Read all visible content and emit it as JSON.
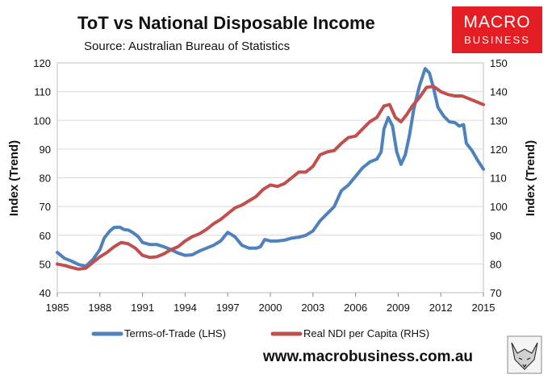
{
  "chart_data": {
    "type": "line",
    "title": "ToT vs National Disposable Income",
    "subtitle": "Source: Australian Bureau of Statistics",
    "ylabel_left": "Index (Trend)",
    "ylabel_right": "Index (Trend)",
    "xlim": [
      1985,
      2015
    ],
    "ylim_left": [
      40,
      120
    ],
    "ylim_right": [
      70,
      150
    ],
    "x_ticks": [
      "1985",
      "1988",
      "1991",
      "1994",
      "1997",
      "2000",
      "2003",
      "2006",
      "2009",
      "2012",
      "2015"
    ],
    "y_ticks_left": [
      "40",
      "50",
      "60",
      "70",
      "80",
      "90",
      "100",
      "110",
      "120"
    ],
    "y_ticks_right": [
      "70",
      "80",
      "90",
      "100",
      "110",
      "120",
      "130",
      "140",
      "150"
    ],
    "grid": true,
    "series": [
      {
        "name": "Terms-of-Trade (LHS)",
        "axis": "left",
        "color": "#4F81BD",
        "points": [
          [
            1985.0,
            54.0
          ],
          [
            1985.5,
            52.0
          ],
          [
            1986.0,
            51.0
          ],
          [
            1986.5,
            49.8
          ],
          [
            1987.0,
            49.2
          ],
          [
            1987.5,
            51.5
          ],
          [
            1988.0,
            55.0
          ],
          [
            1988.3,
            59.0
          ],
          [
            1988.7,
            61.5
          ],
          [
            1989.0,
            62.7
          ],
          [
            1989.4,
            62.8
          ],
          [
            1989.7,
            62.0
          ],
          [
            1990.0,
            61.8
          ],
          [
            1990.3,
            61.0
          ],
          [
            1990.7,
            59.5
          ],
          [
            1991.0,
            57.5
          ],
          [
            1991.5,
            56.8
          ],
          [
            1992.0,
            56.8
          ],
          [
            1992.5,
            56.0
          ],
          [
            1993.0,
            55.0
          ],
          [
            1993.5,
            53.8
          ],
          [
            1994.0,
            53.0
          ],
          [
            1994.5,
            53.2
          ],
          [
            1995.0,
            54.5
          ],
          [
            1995.5,
            55.5
          ],
          [
            1996.0,
            56.5
          ],
          [
            1996.5,
            58.0
          ],
          [
            1997.0,
            61.0
          ],
          [
            1997.5,
            59.5
          ],
          [
            1998.0,
            56.5
          ],
          [
            1998.5,
            55.5
          ],
          [
            1999.0,
            55.5
          ],
          [
            1999.3,
            56.0
          ],
          [
            1999.6,
            58.5
          ],
          [
            2000.0,
            58.0
          ],
          [
            2000.5,
            58.0
          ],
          [
            2001.0,
            58.3
          ],
          [
            2001.5,
            59.0
          ],
          [
            2002.0,
            59.3
          ],
          [
            2002.5,
            60.0
          ],
          [
            2003.0,
            61.5
          ],
          [
            2003.5,
            65.0
          ],
          [
            2004.0,
            67.5
          ],
          [
            2004.5,
            70.0
          ],
          [
            2005.0,
            75.5
          ],
          [
            2005.5,
            77.5
          ],
          [
            2006.0,
            80.5
          ],
          [
            2006.5,
            83.5
          ],
          [
            2007.0,
            85.5
          ],
          [
            2007.5,
            86.5
          ],
          [
            2007.8,
            89.0
          ],
          [
            2008.0,
            97.0
          ],
          [
            2008.3,
            101.0
          ],
          [
            2008.6,
            98.0
          ],
          [
            2008.9,
            89.0
          ],
          [
            2009.2,
            84.7
          ],
          [
            2009.5,
            88.0
          ],
          [
            2009.8,
            95.0
          ],
          [
            2010.1,
            104.0
          ],
          [
            2010.5,
            112.0
          ],
          [
            2010.9,
            118.0
          ],
          [
            2011.2,
            116.5
          ],
          [
            2011.5,
            111.0
          ],
          [
            2011.8,
            104.5
          ],
          [
            2012.2,
            101.5
          ],
          [
            2012.6,
            99.5
          ],
          [
            2013.0,
            99.2
          ],
          [
            2013.3,
            98.0
          ],
          [
            2013.6,
            98.5
          ],
          [
            2013.8,
            92.0
          ],
          [
            2014.2,
            89.5
          ],
          [
            2014.6,
            86.0
          ],
          [
            2015.0,
            83.0
          ]
        ]
      },
      {
        "name": "Real NDI per Capita (RHS)",
        "axis": "right",
        "color": "#C0504D",
        "points": [
          [
            1985.0,
            80.0
          ],
          [
            1985.5,
            79.5
          ],
          [
            1986.0,
            78.8
          ],
          [
            1986.5,
            78.2
          ],
          [
            1987.0,
            78.5
          ],
          [
            1987.5,
            80.5
          ],
          [
            1988.0,
            82.5
          ],
          [
            1988.5,
            84.0
          ],
          [
            1989.0,
            86.0
          ],
          [
            1989.5,
            87.5
          ],
          [
            1990.0,
            87.0
          ],
          [
            1990.5,
            85.5
          ],
          [
            1991.0,
            83.0
          ],
          [
            1991.5,
            82.3
          ],
          [
            1992.0,
            82.5
          ],
          [
            1992.5,
            83.5
          ],
          [
            1993.0,
            85.0
          ],
          [
            1993.5,
            86.0
          ],
          [
            1994.0,
            88.0
          ],
          [
            1994.5,
            89.5
          ],
          [
            1995.0,
            90.5
          ],
          [
            1995.5,
            92.0
          ],
          [
            1996.0,
            94.0
          ],
          [
            1996.5,
            95.5
          ],
          [
            1997.0,
            97.5
          ],
          [
            1997.5,
            99.5
          ],
          [
            1998.0,
            100.5
          ],
          [
            1998.5,
            102.0
          ],
          [
            1999.0,
            103.5
          ],
          [
            1999.5,
            106.0
          ],
          [
            2000.0,
            107.5
          ],
          [
            2000.5,
            107.0
          ],
          [
            2001.0,
            108.0
          ],
          [
            2001.5,
            110.0
          ],
          [
            2002.0,
            112.0
          ],
          [
            2002.5,
            112.0
          ],
          [
            2003.0,
            114.0
          ],
          [
            2003.5,
            118.0
          ],
          [
            2004.0,
            119.0
          ],
          [
            2004.5,
            119.5
          ],
          [
            2005.0,
            122.0
          ],
          [
            2005.5,
            124.0
          ],
          [
            2006.0,
            124.5
          ],
          [
            2006.5,
            127.0
          ],
          [
            2007.0,
            129.5
          ],
          [
            2007.5,
            131.0
          ],
          [
            2008.0,
            135.0
          ],
          [
            2008.4,
            135.5
          ],
          [
            2008.8,
            131.0
          ],
          [
            2009.2,
            129.5
          ],
          [
            2009.6,
            132.0
          ],
          [
            2010.0,
            135.0
          ],
          [
            2010.5,
            138.0
          ],
          [
            2011.0,
            141.5
          ],
          [
            2011.5,
            141.8
          ],
          [
            2012.0,
            140.0
          ],
          [
            2012.5,
            139.0
          ],
          [
            2013.0,
            138.5
          ],
          [
            2013.5,
            138.5
          ],
          [
            2014.0,
            137.5
          ],
          [
            2014.5,
            136.5
          ],
          [
            2015.0,
            135.5
          ]
        ]
      }
    ]
  },
  "logo": {
    "line1": "MACRO",
    "line2": "BUSINESS",
    "color": "#E31E24"
  },
  "footer": {
    "website": "www.macrobusiness.com.au"
  }
}
